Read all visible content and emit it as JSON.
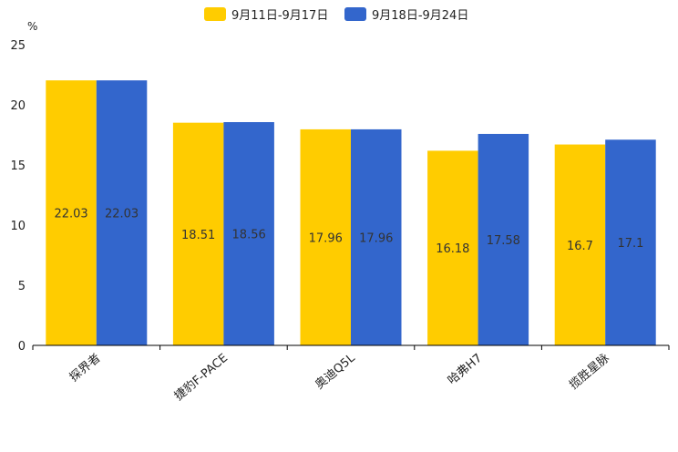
{
  "chart_data": {
    "type": "bar",
    "unit": "%",
    "categories": [
      "探界者",
      "捷豹F-PACE",
      "奥迪Q5L",
      "哈弗H7",
      "揽胜星脉"
    ],
    "series": [
      {
        "name": "9月11日-9月17日",
        "color": "#FFCC00",
        "values": [
          22.03,
          18.51,
          17.96,
          16.18,
          16.7
        ]
      },
      {
        "name": "9月18日-9月24日",
        "color": "#3366CC",
        "values": [
          22.03,
          18.56,
          17.96,
          17.58,
          17.1
        ]
      }
    ],
    "ylim": [
      0,
      25
    ],
    "yticks": [
      0,
      5,
      10,
      15,
      20,
      25
    ],
    "grid": false,
    "legend_position": "top-center"
  }
}
